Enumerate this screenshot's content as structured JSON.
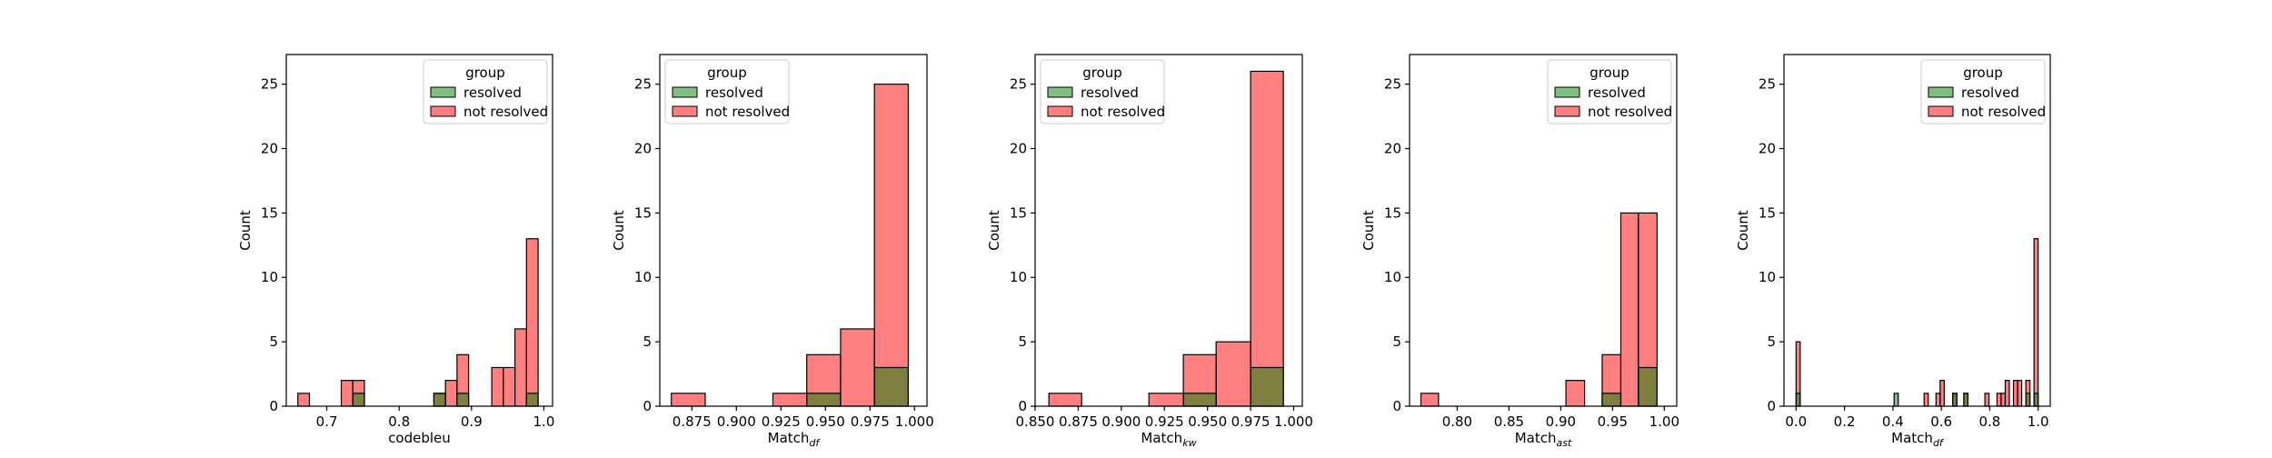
{
  "chart_data": [
    {
      "type": "histogram",
      "xlabel": "codebleu",
      "xlabel_sub": "",
      "ylabel": "Count",
      "xlim": [
        0.644,
        1.012
      ],
      "ylim": [
        0,
        27.3
      ],
      "xticks": [
        0.7,
        0.8,
        0.9,
        1.0
      ],
      "xtick_labels": [
        "0.7",
        "0.8",
        "0.9",
        "1.0"
      ],
      "yticks": [
        0,
        5,
        10,
        15,
        20,
        25
      ],
      "legend": {
        "title": "group",
        "placement": "top-right",
        "entries": [
          "resolved",
          "not resolved"
        ]
      },
      "series": [
        {
          "name": "not resolved",
          "color": "#ff8080",
          "bins": [
            [
              0.66,
              0.676,
              1
            ],
            [
              0.72,
              0.736,
              2
            ],
            [
              0.736,
              0.752,
              2
            ],
            [
              0.848,
              0.864,
              1
            ],
            [
              0.864,
              0.88,
              2
            ],
            [
              0.88,
              0.896,
              4
            ],
            [
              0.928,
              0.944,
              3
            ],
            [
              0.944,
              0.96,
              3
            ],
            [
              0.96,
              0.976,
              6
            ],
            [
              0.976,
              0.992,
              13
            ]
          ]
        },
        {
          "name": "resolved",
          "color": "#6b9c5a",
          "bins": [
            [
              0.736,
              0.752,
              1
            ],
            [
              0.848,
              0.864,
              1
            ],
            [
              0.88,
              0.896,
              1
            ],
            [
              0.976,
              0.992,
              1
            ]
          ]
        }
      ]
    },
    {
      "type": "histogram",
      "xlabel": "Match",
      "xlabel_sub": "df",
      "ylabel": "Count",
      "xlim": [
        0.857,
        1.007
      ],
      "ylim": [
        0,
        27.3
      ],
      "xticks": [
        0.875,
        0.9,
        0.925,
        0.95,
        0.975,
        1.0
      ],
      "xtick_labels": [
        "0.875",
        "0.900",
        "0.925",
        "0.950",
        "0.975",
        "1.000"
      ],
      "yticks": [
        0,
        5,
        10,
        15,
        20,
        25
      ],
      "legend": {
        "title": "group",
        "placement": "top-left",
        "entries": [
          "resolved",
          "not resolved"
        ]
      },
      "series": [
        {
          "name": "not resolved",
          "color": "#ff8080",
          "bins": [
            [
              0.8635,
              0.8825,
              1
            ],
            [
              0.9205,
              0.9395,
              1
            ],
            [
              0.9395,
              0.9585,
              4
            ],
            [
              0.9585,
              0.9775,
              6
            ],
            [
              0.9775,
              0.9965,
              25
            ]
          ]
        },
        {
          "name": "resolved",
          "color": "#6b9c5a",
          "bins": [
            [
              0.9395,
              0.9585,
              1
            ],
            [
              0.9775,
              0.9965,
              3
            ]
          ]
        }
      ]
    },
    {
      "type": "histogram",
      "xlabel": "Match",
      "xlabel_sub": "kw",
      "ylabel": "Count",
      "xlim": [
        0.85,
        1.005
      ],
      "ylim": [
        0,
        27.3
      ],
      "xticks": [
        0.85,
        0.875,
        0.9,
        0.925,
        0.95,
        0.975,
        1.0
      ],
      "xtick_labels": [
        "0.850",
        "0.875",
        "0.900",
        "0.925",
        "0.950",
        "0.975",
        "1.000"
      ],
      "yticks": [
        0,
        5,
        10,
        15,
        20,
        25
      ],
      "legend": {
        "title": "group",
        "placement": "top-left",
        "entries": [
          "resolved",
          "not resolved"
        ]
      },
      "series": [
        {
          "name": "not resolved",
          "color": "#ff8080",
          "bins": [
            [
              0.858,
              0.877,
              1
            ],
            [
              0.916,
              0.936,
              1
            ],
            [
              0.936,
              0.955,
              4
            ],
            [
              0.955,
              0.975,
              5
            ],
            [
              0.975,
              0.994,
              26
            ]
          ]
        },
        {
          "name": "resolved",
          "color": "#6b9c5a",
          "bins": [
            [
              0.936,
              0.955,
              1
            ],
            [
              0.975,
              0.994,
              3
            ]
          ]
        }
      ]
    },
    {
      "type": "histogram",
      "xlabel": "Match",
      "xlabel_sub": "ast",
      "ylabel": "Count",
      "xlim": [
        0.754,
        1.012
      ],
      "ylim": [
        0,
        27.3
      ],
      "xticks": [
        0.8,
        0.85,
        0.9,
        0.95,
        1.0
      ],
      "xtick_labels": [
        "0.80",
        "0.85",
        "0.90",
        "0.95",
        "1.00"
      ],
      "yticks": [
        0,
        5,
        10,
        15,
        20,
        25
      ],
      "legend": {
        "title": "group",
        "placement": "top-right",
        "entries": [
          "resolved",
          "not resolved"
        ]
      },
      "series": [
        {
          "name": "not resolved",
          "color": "#ff8080",
          "bins": [
            [
              0.765,
              0.782,
              1
            ],
            [
              0.905,
              0.923,
              2
            ],
            [
              0.94,
              0.958,
              4
            ],
            [
              0.958,
              0.975,
              15
            ],
            [
              0.975,
              0.993,
              15
            ]
          ]
        },
        {
          "name": "resolved",
          "color": "#6b9c5a",
          "bins": [
            [
              0.94,
              0.958,
              1
            ],
            [
              0.975,
              0.993,
              3
            ]
          ]
        }
      ]
    },
    {
      "type": "histogram",
      "xlabel": "Match",
      "xlabel_sub": "df",
      "ylabel": "Count",
      "xlim": [
        -0.05,
        1.05
      ],
      "ylim": [
        0,
        27.3
      ],
      "xticks": [
        0.0,
        0.2,
        0.4,
        0.6,
        0.8,
        1.0
      ],
      "xtick_labels": [
        "0.0",
        "0.2",
        "0.4",
        "0.6",
        "0.8",
        "1.0"
      ],
      "yticks": [
        0,
        5,
        10,
        15,
        20,
        25
      ],
      "legend": {
        "title": "group",
        "placement": "top-right",
        "entries": [
          "resolved",
          "not resolved"
        ]
      },
      "series": [
        {
          "name": "not resolved",
          "color": "#ff8080",
          "bins": [
            [
              0.0,
              0.017,
              5
            ],
            [
              0.529,
              0.546,
              1
            ],
            [
              0.578,
              0.595,
              1
            ],
            [
              0.595,
              0.612,
              2
            ],
            [
              0.647,
              0.664,
              1
            ],
            [
              0.693,
              0.71,
              1
            ],
            [
              0.78,
              0.797,
              1
            ],
            [
              0.83,
              0.847,
              1
            ],
            [
              0.847,
              0.864,
              1
            ],
            [
              0.864,
              0.881,
              2
            ],
            [
              0.898,
              0.915,
              2
            ],
            [
              0.915,
              0.932,
              2
            ],
            [
              0.949,
              0.966,
              2
            ],
            [
              0.983,
              1.0,
              13
            ]
          ]
        },
        {
          "name": "resolved",
          "color": "#6b9c5a",
          "bins": [
            [
              0.0,
              0.017,
              1
            ],
            [
              0.405,
              0.422,
              1
            ],
            [
              0.647,
              0.664,
              1
            ],
            [
              0.693,
              0.71,
              1
            ],
            [
              0.949,
              0.966,
              1
            ],
            [
              0.983,
              1.0,
              1
            ]
          ]
        }
      ]
    }
  ]
}
